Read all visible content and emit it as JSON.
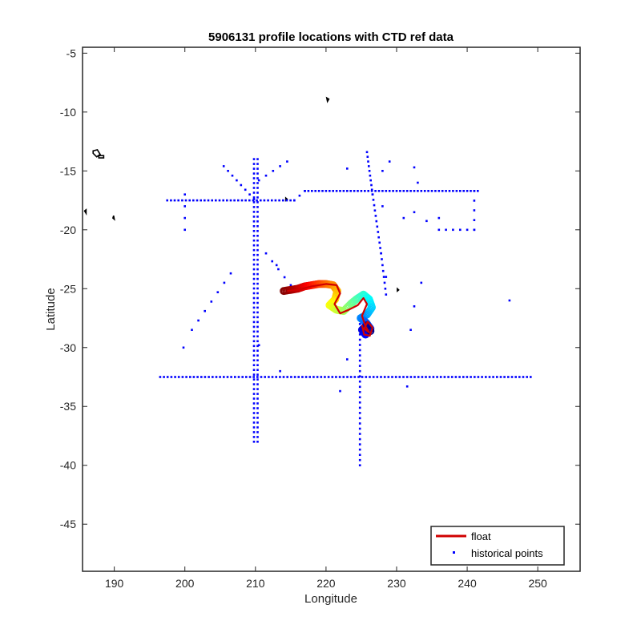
{
  "chart_data": {
    "type": "scatter",
    "title": "5906131 profile locations with CTD ref data",
    "xlabel": "Longitude",
    "ylabel": "Latitude",
    "xlim": [
      185.5,
      256
    ],
    "ylim": [
      -49,
      -4.5
    ],
    "xticks": [
      190,
      200,
      210,
      220,
      230,
      240,
      250
    ],
    "yticks": [
      -5,
      -10,
      -15,
      -20,
      -25,
      -30,
      -35,
      -40,
      -45
    ],
    "grid": false,
    "legend_position": "bottom-right",
    "legend": [
      {
        "label": "float",
        "marker": "line",
        "color": "#d00000"
      },
      {
        "label": "historical points",
        "marker": "dot",
        "color": "#0000ff"
      }
    ],
    "colors": {
      "float": "#d00000",
      "historical": "#0000ff",
      "land": "#000000"
    },
    "series": [
      {
        "name": "float",
        "kind": "line",
        "points": [
          [
            214.5,
            -25.2
          ],
          [
            216,
            -25.1
          ],
          [
            218,
            -24.8
          ],
          [
            220,
            -24.6
          ],
          [
            221.5,
            -24.7
          ],
          [
            222,
            -25.4
          ],
          [
            221.2,
            -26.3
          ],
          [
            222,
            -27.1
          ],
          [
            223.2,
            -26.8
          ],
          [
            224.5,
            -26.4
          ],
          [
            225.3,
            -25.8
          ],
          [
            225.8,
            -26.3
          ],
          [
            225.1,
            -27.3
          ],
          [
            225.6,
            -28.2
          ],
          [
            226.1,
            -28.7
          ],
          [
            225.4,
            -28.4
          ],
          [
            225.9,
            -27.8
          ],
          [
            226.6,
            -28.3
          ],
          [
            226.2,
            -29.0
          ],
          [
            225.4,
            -28.9
          ],
          [
            225.1,
            -28.1
          ]
        ]
      },
      {
        "name": "float profiles (colored by time)",
        "kind": "colored-markers",
        "points": [
          [
            214,
            -25.2,
            0
          ],
          [
            215,
            -25.1,
            0.03
          ],
          [
            216,
            -25.0,
            0.06
          ],
          [
            217,
            -24.8,
            0.1
          ],
          [
            218,
            -24.7,
            0.14
          ],
          [
            219,
            -24.6,
            0.18
          ],
          [
            220,
            -24.6,
            0.22
          ],
          [
            221,
            -24.7,
            0.26
          ],
          [
            221.6,
            -25.2,
            0.3
          ],
          [
            221.3,
            -25.9,
            0.34
          ],
          [
            220.5,
            -26.4,
            0.38
          ],
          [
            221.5,
            -26.8,
            0.42
          ],
          [
            222.5,
            -26.9,
            0.46
          ],
          [
            223.5,
            -26.3,
            0.5
          ],
          [
            224.3,
            -25.9,
            0.54
          ],
          [
            225.3,
            -25.5,
            0.58
          ],
          [
            226.1,
            -25.9,
            0.62
          ],
          [
            226.5,
            -26.6,
            0.66
          ],
          [
            225.8,
            -27.2,
            0.7
          ],
          [
            224.9,
            -27.5,
            0.74
          ],
          [
            225.7,
            -27.9,
            0.78
          ],
          [
            226.3,
            -28.4,
            0.82
          ],
          [
            225.6,
            -28.9,
            0.86
          ],
          [
            225.1,
            -28.5,
            0.9
          ],
          [
            225.8,
            -28.1,
            0.95
          ],
          [
            226.4,
            -28.7,
            1.0
          ]
        ]
      },
      {
        "name": "historical points",
        "kind": "segments",
        "segments": [
          {
            "from": [
              196.5,
              -32.5
            ],
            "to": [
              249,
              -32.5
            ],
            "n": 100
          },
          {
            "from": [
              197.5,
              -17.5
            ],
            "to": [
              215.5,
              -17.5
            ],
            "n": 35
          },
          {
            "from": [
              215.5,
              -17.5
            ],
            "to": [
              217,
              -16.7
            ],
            "n": 3
          },
          {
            "from": [
              217,
              -16.7
            ],
            "to": [
              241.5,
              -16.7
            ],
            "n": 50
          },
          {
            "from": [
              209.8,
              -14.0
            ],
            "to": [
              209.8,
              -38.0
            ],
            "n": 60
          },
          {
            "from": [
              210.3,
              -14.0
            ],
            "to": [
              210.3,
              -38.0
            ],
            "n": 60
          },
          {
            "from": [
              225.8,
              -13.4
            ],
            "to": [
              226.6,
              -17.0
            ],
            "n": 10
          },
          {
            "from": [
              226.6,
              -17.0
            ],
            "to": [
              227.8,
              -22.0
            ],
            "n": 12
          },
          {
            "from": [
              227.8,
              -22.0
            ],
            "to": [
              228.5,
              -25.5
            ],
            "n": 8
          },
          {
            "from": [
              224.8,
              -28.0
            ],
            "to": [
              224.8,
              -40.0
            ],
            "n": 28
          },
          {
            "from": [
              205.5,
              -14.6
            ],
            "to": [
              209.8,
              -17.4
            ],
            "n": 8
          },
          {
            "from": [
              241,
              -16.7
            ],
            "to": [
              241,
              -20
            ],
            "n": 5
          },
          {
            "from": [
              200,
              -17.0
            ],
            "to": [
              200,
              -20
            ],
            "n": 4
          },
          {
            "from": [
              201,
              -28.5
            ],
            "to": [
              206.5,
              -23.7
            ],
            "n": 7
          },
          {
            "from": [
              210.5,
              -15.8
            ],
            "to": [
              214.5,
              -14.2
            ],
            "n": 5
          },
          {
            "from": [
              211.5,
              -22.0
            ],
            "to": [
              215,
              -24.7
            ],
            "n": 5
          },
          {
            "from": [
              232.5,
              -18.5
            ],
            "to": [
              236,
              -20
            ],
            "n": 3
          },
          {
            "from": [
              237,
              -20
            ],
            "to": [
              241,
              -20
            ],
            "n": 5
          }
        ],
        "extra_points": [
          [
            199.8,
            -30
          ],
          [
            210.5,
            -29.8
          ],
          [
            213,
            -23
          ],
          [
            213.5,
            -32
          ],
          [
            222,
            -33.7
          ],
          [
            231.5,
            -33.3
          ],
          [
            232,
            -28.5
          ],
          [
            232.5,
            -26.5
          ],
          [
            233.5,
            -24.5
          ],
          [
            228.5,
            -24
          ],
          [
            246,
            -26
          ],
          [
            223,
            -31
          ],
          [
            228,
            -18
          ],
          [
            232.5,
            -14.7
          ],
          [
            233,
            -16
          ],
          [
            231,
            -19
          ],
          [
            236,
            -19
          ],
          [
            223,
            -14.8
          ],
          [
            229,
            -14.2
          ],
          [
            228,
            -15
          ]
        ]
      },
      {
        "name": "land",
        "kind": "outlines",
        "shapes": [
          [
            [
              187,
              -13.3
            ],
            [
              187.6,
              -13.2
            ],
            [
              188.0,
              -13.6
            ],
            [
              187.5,
              -13.8
            ],
            [
              187,
              -13.5
            ]
          ],
          [
            [
              187.8,
              -13.7
            ],
            [
              188.5,
              -13.7
            ],
            [
              188.5,
              -13.9
            ],
            [
              187.8,
              -13.9
            ]
          ],
          [
            [
              220.1,
              -8.8
            ],
            [
              220.4,
              -8.9
            ],
            [
              220.2,
              -9.1
            ]
          ],
          [
            [
              185.8,
              -18.4
            ],
            [
              186.0,
              -18.3
            ],
            [
              186.0,
              -18.6
            ]
          ],
          [
            [
              189.9,
              -18.8
            ],
            [
              190.0,
              -19.1
            ],
            [
              189.8,
              -19.0
            ]
          ],
          [
            [
              214.3,
              -17.3
            ],
            [
              214.5,
              -17.4
            ],
            [
              214.3,
              -17.5
            ]
          ],
          [
            [
              230.1,
              -25.0
            ],
            [
              230.3,
              -25.1
            ],
            [
              230.1,
              -25.2
            ]
          ]
        ]
      }
    ]
  }
}
